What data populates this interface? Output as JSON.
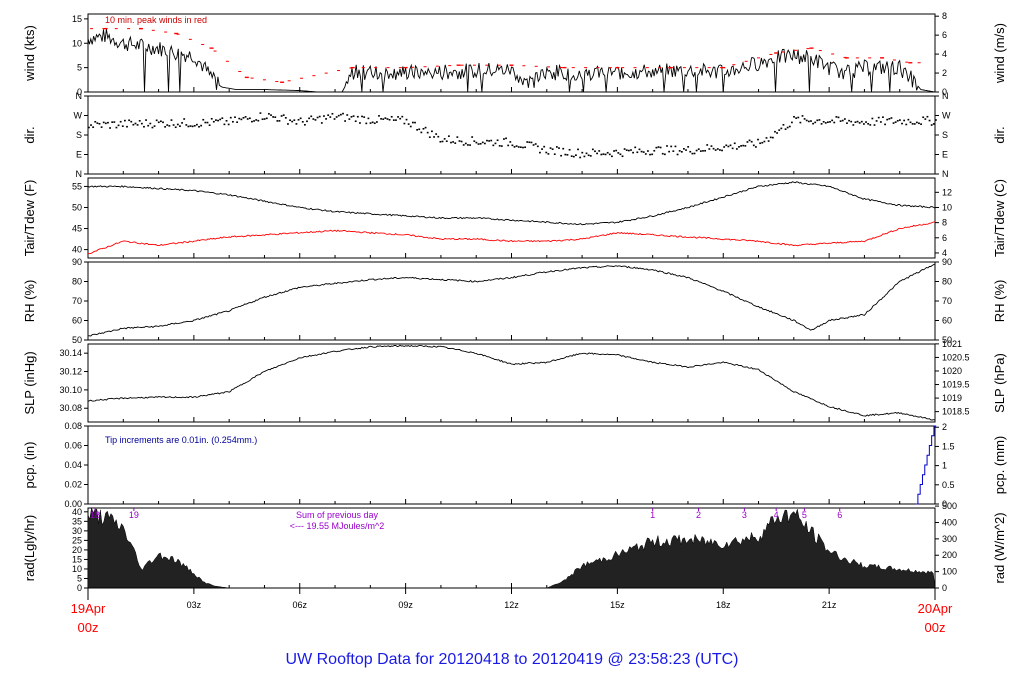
{
  "footer": {
    "title": "UW Rooftop Data for 20120418  to  20120419 @ 23:58:23  (UTC)"
  },
  "time_axis": {
    "start_top": "19Apr",
    "start_bottom": "00z",
    "end_top": "20Apr",
    "end_bottom": "00z",
    "ticks": [
      {
        "hour": 3,
        "label": "03z"
      },
      {
        "hour": 6,
        "label": "06z"
      },
      {
        "hour": 9,
        "label": "09z"
      },
      {
        "hour": 12,
        "label": "12z"
      },
      {
        "hour": 15,
        "label": "15z"
      },
      {
        "hour": 18,
        "label": "18z"
      },
      {
        "hour": 21,
        "label": "21z"
      }
    ]
  },
  "colors": {
    "series": "#000000",
    "peak": "#ff0000",
    "dewpoint": "#ff0000",
    "precip": "#0000cc",
    "annot_red": "#cc0000",
    "annot_blue": "#000099",
    "annot_purple": "#9900cc",
    "date": "#ff0000",
    "footer": "#1a1ae6"
  },
  "chart_data": [
    {
      "id": "wind",
      "type": "line",
      "left_label": "wind (kts)",
      "right_label": "wind (m/s)",
      "left_ticks": [
        "0",
        "5",
        "10",
        "15"
      ],
      "right_ticks": [
        "0",
        "2",
        "4",
        "6",
        "8"
      ],
      "annotation": "10 min. peak winds in red",
      "series": [
        {
          "name": "wind speed",
          "x": [
            0,
            0.5,
            1,
            1.5,
            2,
            2.5,
            3,
            3.3,
            3.6,
            3.8,
            4.2,
            5,
            6,
            6.5,
            7,
            7.2,
            7.5,
            8,
            9,
            10,
            11,
            12,
            12.3,
            12.6,
            13,
            14,
            15,
            16,
            17,
            18,
            18.5,
            19,
            19.5,
            20,
            20.5,
            21,
            21.5,
            22,
            22.5,
            23,
            23.3,
            23.6,
            24
          ],
          "y": [
            11,
            11.5,
            10,
            9.5,
            9,
            8,
            7.5,
            5,
            2,
            1,
            0.5,
            0.5,
            0.3,
            0,
            0,
            0,
            4,
            4,
            4,
            4,
            4.5,
            4.5,
            3,
            2,
            4,
            4,
            4,
            4.2,
            4.5,
            4,
            5,
            6,
            7,
            7.5,
            7,
            5,
            4,
            5,
            5,
            5,
            3,
            0.5,
            0
          ]
        },
        {
          "name": "10 min peak",
          "x": [
            0.5,
            1.5,
            2.5,
            3.5,
            4.5,
            5.5,
            7.5,
            9,
            10.5,
            12,
            13.5,
            15,
            16.5,
            18,
            19.5,
            20.5,
            21.5,
            22.5,
            23.3
          ],
          "y": [
            13,
            13,
            12,
            9,
            3,
            2,
            5,
            5,
            5.5,
            5.5,
            5,
            5,
            5,
            5,
            8,
            9,
            7,
            7,
            6
          ]
        }
      ],
      "ylim": [
        0,
        16
      ]
    },
    {
      "id": "dir",
      "type": "scatter",
      "left_label": "dir.",
      "right_label": "dir.",
      "left_ticks": [
        "N",
        "E",
        "S",
        "W",
        "N"
      ],
      "right_ticks": [
        "N",
        "E",
        "S",
        "W",
        "N"
      ],
      "series": [
        {
          "name": "wind direction",
          "x": [
            0,
            1,
            2,
            3,
            4,
            5,
            6,
            7,
            8,
            9,
            10,
            11,
            12,
            13,
            14,
            15,
            16,
            17,
            18,
            19,
            20,
            21,
            22,
            23,
            24
          ],
          "y": [
            225,
            230,
            235,
            235,
            240,
            270,
            240,
            265,
            250,
            245,
            160,
            150,
            145,
            110,
            95,
            100,
            110,
            110,
            125,
            140,
            250,
            245,
            240,
            245,
            245
          ]
        }
      ],
      "ylim": [
        0,
        360
      ]
    },
    {
      "id": "temp",
      "type": "line",
      "left_label": "Tair/Tdew (F)",
      "right_label": "Tair/Tdew (C)",
      "left_ticks": [
        "40",
        "45",
        "50",
        "55"
      ],
      "right_ticks": [
        "4",
        "6",
        "8",
        "10",
        "12"
      ],
      "series": [
        {
          "name": "Tair",
          "x": [
            0,
            1,
            2,
            3,
            4,
            5,
            6,
            7,
            8,
            9,
            10,
            11,
            12,
            13,
            14,
            15,
            16,
            17,
            18,
            19,
            20,
            21,
            22,
            23,
            24
          ],
          "y": [
            55,
            55,
            54.5,
            54,
            53,
            51.5,
            50,
            49,
            48.5,
            48,
            47.5,
            47.5,
            47,
            46.5,
            46,
            46.5,
            48,
            50,
            52.5,
            55,
            56,
            55,
            52,
            50.5,
            50
          ]
        },
        {
          "name": "Tdew",
          "x": [
            0,
            1,
            2,
            3,
            4,
            5,
            6,
            7,
            8,
            9,
            10,
            11,
            12,
            13,
            14,
            15,
            16,
            17,
            18,
            19,
            20,
            21,
            22,
            23,
            24
          ],
          "y": [
            39,
            42,
            41,
            42,
            43,
            43.5,
            44,
            44.5,
            44,
            43.5,
            42.5,
            42.5,
            42,
            42,
            42.5,
            44,
            43.5,
            43,
            42.5,
            42,
            41,
            41.5,
            42,
            45,
            46.5
          ]
        }
      ],
      "ylim": [
        38,
        57
      ]
    },
    {
      "id": "rh",
      "type": "line",
      "left_label": "RH (%)",
      "right_label": "RH (%)",
      "left_ticks": [
        "50",
        "60",
        "70",
        "80",
        "90"
      ],
      "right_ticks": [
        "50",
        "60",
        "70",
        "80",
        "90"
      ],
      "series": [
        {
          "name": "RH",
          "x": [
            0,
            1,
            2,
            3,
            4,
            5,
            6,
            7,
            8,
            9,
            10,
            11,
            12,
            13,
            14,
            15,
            16,
            17,
            18,
            19,
            20,
            20.5,
            21,
            22,
            23,
            24
          ],
          "y": [
            52,
            56,
            57,
            60,
            65,
            72,
            77,
            79,
            81,
            82,
            81,
            80,
            82,
            85,
            87,
            88,
            86,
            82,
            75,
            67,
            60,
            55,
            60,
            63,
            80,
            89
          ]
        }
      ],
      "ylim": [
        50,
        90
      ]
    },
    {
      "id": "slp",
      "type": "line",
      "left_label": "SLP (inHg)",
      "right_label": "SLP (hPa)",
      "left_ticks": [
        "30.08",
        "30.10",
        "30.12",
        "30.14"
      ],
      "right_ticks": [
        "1018.5",
        "1019",
        "1019.5",
        "1020",
        "1020.5",
        "1021"
      ],
      "series": [
        {
          "name": "SLP",
          "x": [
            0,
            1,
            2,
            3,
            4,
            5,
            6,
            7,
            8,
            9,
            10,
            11,
            12,
            13,
            14,
            15,
            16,
            17,
            18,
            19,
            20,
            21,
            22,
            23,
            24
          ],
          "y": [
            30.088,
            30.091,
            30.092,
            30.092,
            30.098,
            30.12,
            30.135,
            30.142,
            30.147,
            30.148,
            30.147,
            30.14,
            30.128,
            30.13,
            30.14,
            30.138,
            30.13,
            30.125,
            30.13,
            30.122,
            30.098,
            30.082,
            30.072,
            30.075,
            30.067
          ]
        }
      ],
      "ylim": [
        30.065,
        30.15
      ]
    },
    {
      "id": "pcp",
      "type": "line",
      "left_label": "pcp. (in)",
      "right_label": "pcp. (mm)",
      "left_ticks": [
        "0.00",
        "0.02",
        "0.04",
        "0.06",
        "0.08"
      ],
      "right_ticks": [
        "0",
        "0.5",
        "1",
        "1.5",
        "2"
      ],
      "annotation": "Tip increments are 0.01in. (0.254mm.)",
      "series": [
        {
          "name": "accumulated precipitation",
          "x": [
            0,
            23.5,
            23.7,
            23.85,
            24
          ],
          "y": [
            0,
            0.01,
            0.03,
            0.05,
            0.08
          ]
        }
      ],
      "ylim": [
        0,
        0.08
      ]
    },
    {
      "id": "rad",
      "type": "area",
      "left_label": "rad(Lgly/hr)",
      "right_label": "rad (W/m^2)",
      "left_ticks": [
        "0",
        "5",
        "10",
        "15",
        "20",
        "25",
        "30",
        "35",
        "40"
      ],
      "right_ticks": [
        "0",
        "100",
        "200",
        "300",
        "400",
        "500"
      ],
      "annotation_lines": [
        "Sum of previous day",
        "<--- 19.55 MJoules/m^2"
      ],
      "hour_marks": [
        {
          "x": 0.2,
          "label": "18"
        },
        {
          "x": 1.3,
          "label": "19"
        },
        {
          "x": 16.0,
          "label": "1"
        },
        {
          "x": 17.3,
          "label": "2"
        },
        {
          "x": 18.6,
          "label": "3"
        },
        {
          "x": 19.5,
          "label": "4"
        },
        {
          "x": 20.3,
          "label": "5"
        },
        {
          "x": 21.3,
          "label": "6"
        }
      ],
      "series": [
        {
          "name": "solar radiation",
          "x": [
            0,
            0.5,
            1,
            1.3,
            1.5,
            2,
            2.5,
            3,
            3.3,
            3.6,
            4,
            13,
            13.5,
            14,
            15,
            16,
            17,
            18,
            19,
            19.5,
            20,
            20.5,
            21,
            21.5,
            22,
            23,
            24
          ],
          "y": [
            40,
            38,
            32,
            20,
            10,
            18,
            15,
            8,
            3,
            1,
            0,
            0,
            4,
            12,
            18,
            25,
            26,
            24,
            28,
            38,
            40,
            30,
            20,
            15,
            12,
            10,
            8
          ]
        }
      ],
      "ylim": [
        0,
        42
      ]
    }
  ]
}
